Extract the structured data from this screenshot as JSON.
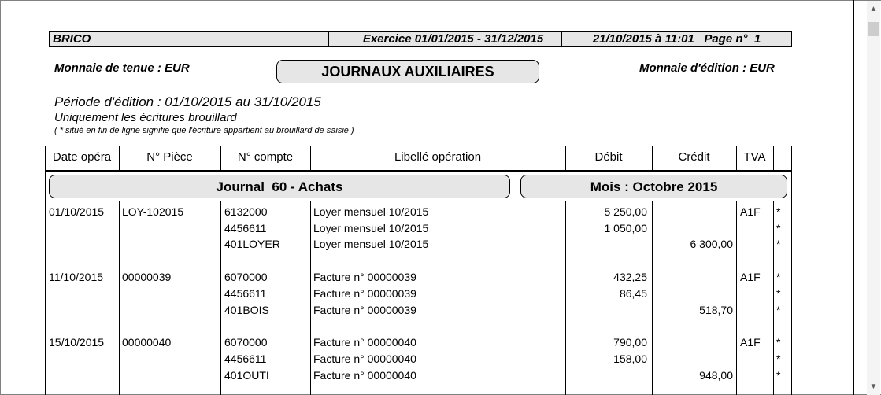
{
  "header": {
    "company": "BRICO",
    "exercise": "Exercice 01/01/2015 - 31/12/2015",
    "printed": "21/10/2015 à 11:01   Page n°  1"
  },
  "currency_held": "Monnaie de tenue : EUR",
  "currency_print": "Monnaie d'édition : EUR",
  "title": "JOURNAUX AUXILIAIRES",
  "period": "Période d'édition : 01/10/2015 au 31/10/2015",
  "filter": "Uniquement les écritures brouillard",
  "note": "( * situé en fin de ligne signifie que l'écriture appartient au brouillard de saisie )",
  "columns": [
    "Date opéra",
    "N° Pièce",
    "N° compte",
    "Libellé opération",
    "Débit",
    "Crédit",
    "TVA",
    ""
  ],
  "journal": "Journal  60 - Achats",
  "month": "Mois : Octobre 2015",
  "rows": [
    {
      "date": "01/10/2015",
      "piece": "LOY-102015",
      "account": "6132000",
      "label": "Loyer mensuel 10/2015",
      "debit": "5 250,00",
      "credit": "",
      "tva": "A1F",
      "flag": "*"
    },
    {
      "date": "",
      "piece": "",
      "account": "4456611",
      "label": "Loyer mensuel 10/2015",
      "debit": "1 050,00",
      "credit": "",
      "tva": "",
      "flag": "*"
    },
    {
      "date": "",
      "piece": "",
      "account": "401LOYER",
      "label": "Loyer mensuel 10/2015",
      "debit": "",
      "credit": "6 300,00",
      "tva": "",
      "flag": "*"
    },
    {
      "date": "11/10/2015",
      "piece": "00000039",
      "account": "6070000",
      "label": "Facture n° 00000039",
      "debit": "432,25",
      "credit": "",
      "tva": "A1F",
      "flag": "*"
    },
    {
      "date": "",
      "piece": "",
      "account": "4456611",
      "label": "Facture n° 00000039",
      "debit": "86,45",
      "credit": "",
      "tva": "",
      "flag": "*"
    },
    {
      "date": "",
      "piece": "",
      "account": "401BOIS",
      "label": "Facture n° 00000039",
      "debit": "",
      "credit": "518,70",
      "tva": "",
      "flag": "*"
    },
    {
      "date": "15/10/2015",
      "piece": "00000040",
      "account": "6070000",
      "label": "Facture n° 00000040",
      "debit": "790,00",
      "credit": "",
      "tva": "A1F",
      "flag": "*"
    },
    {
      "date": "",
      "piece": "",
      "account": "4456611",
      "label": "Facture n° 00000040",
      "debit": "158,00",
      "credit": "",
      "tva": "",
      "flag": "*"
    },
    {
      "date": "",
      "piece": "",
      "account": "401OUTI",
      "label": "Facture n° 00000040",
      "debit": "",
      "credit": "948,00",
      "tva": "",
      "flag": "*"
    }
  ]
}
